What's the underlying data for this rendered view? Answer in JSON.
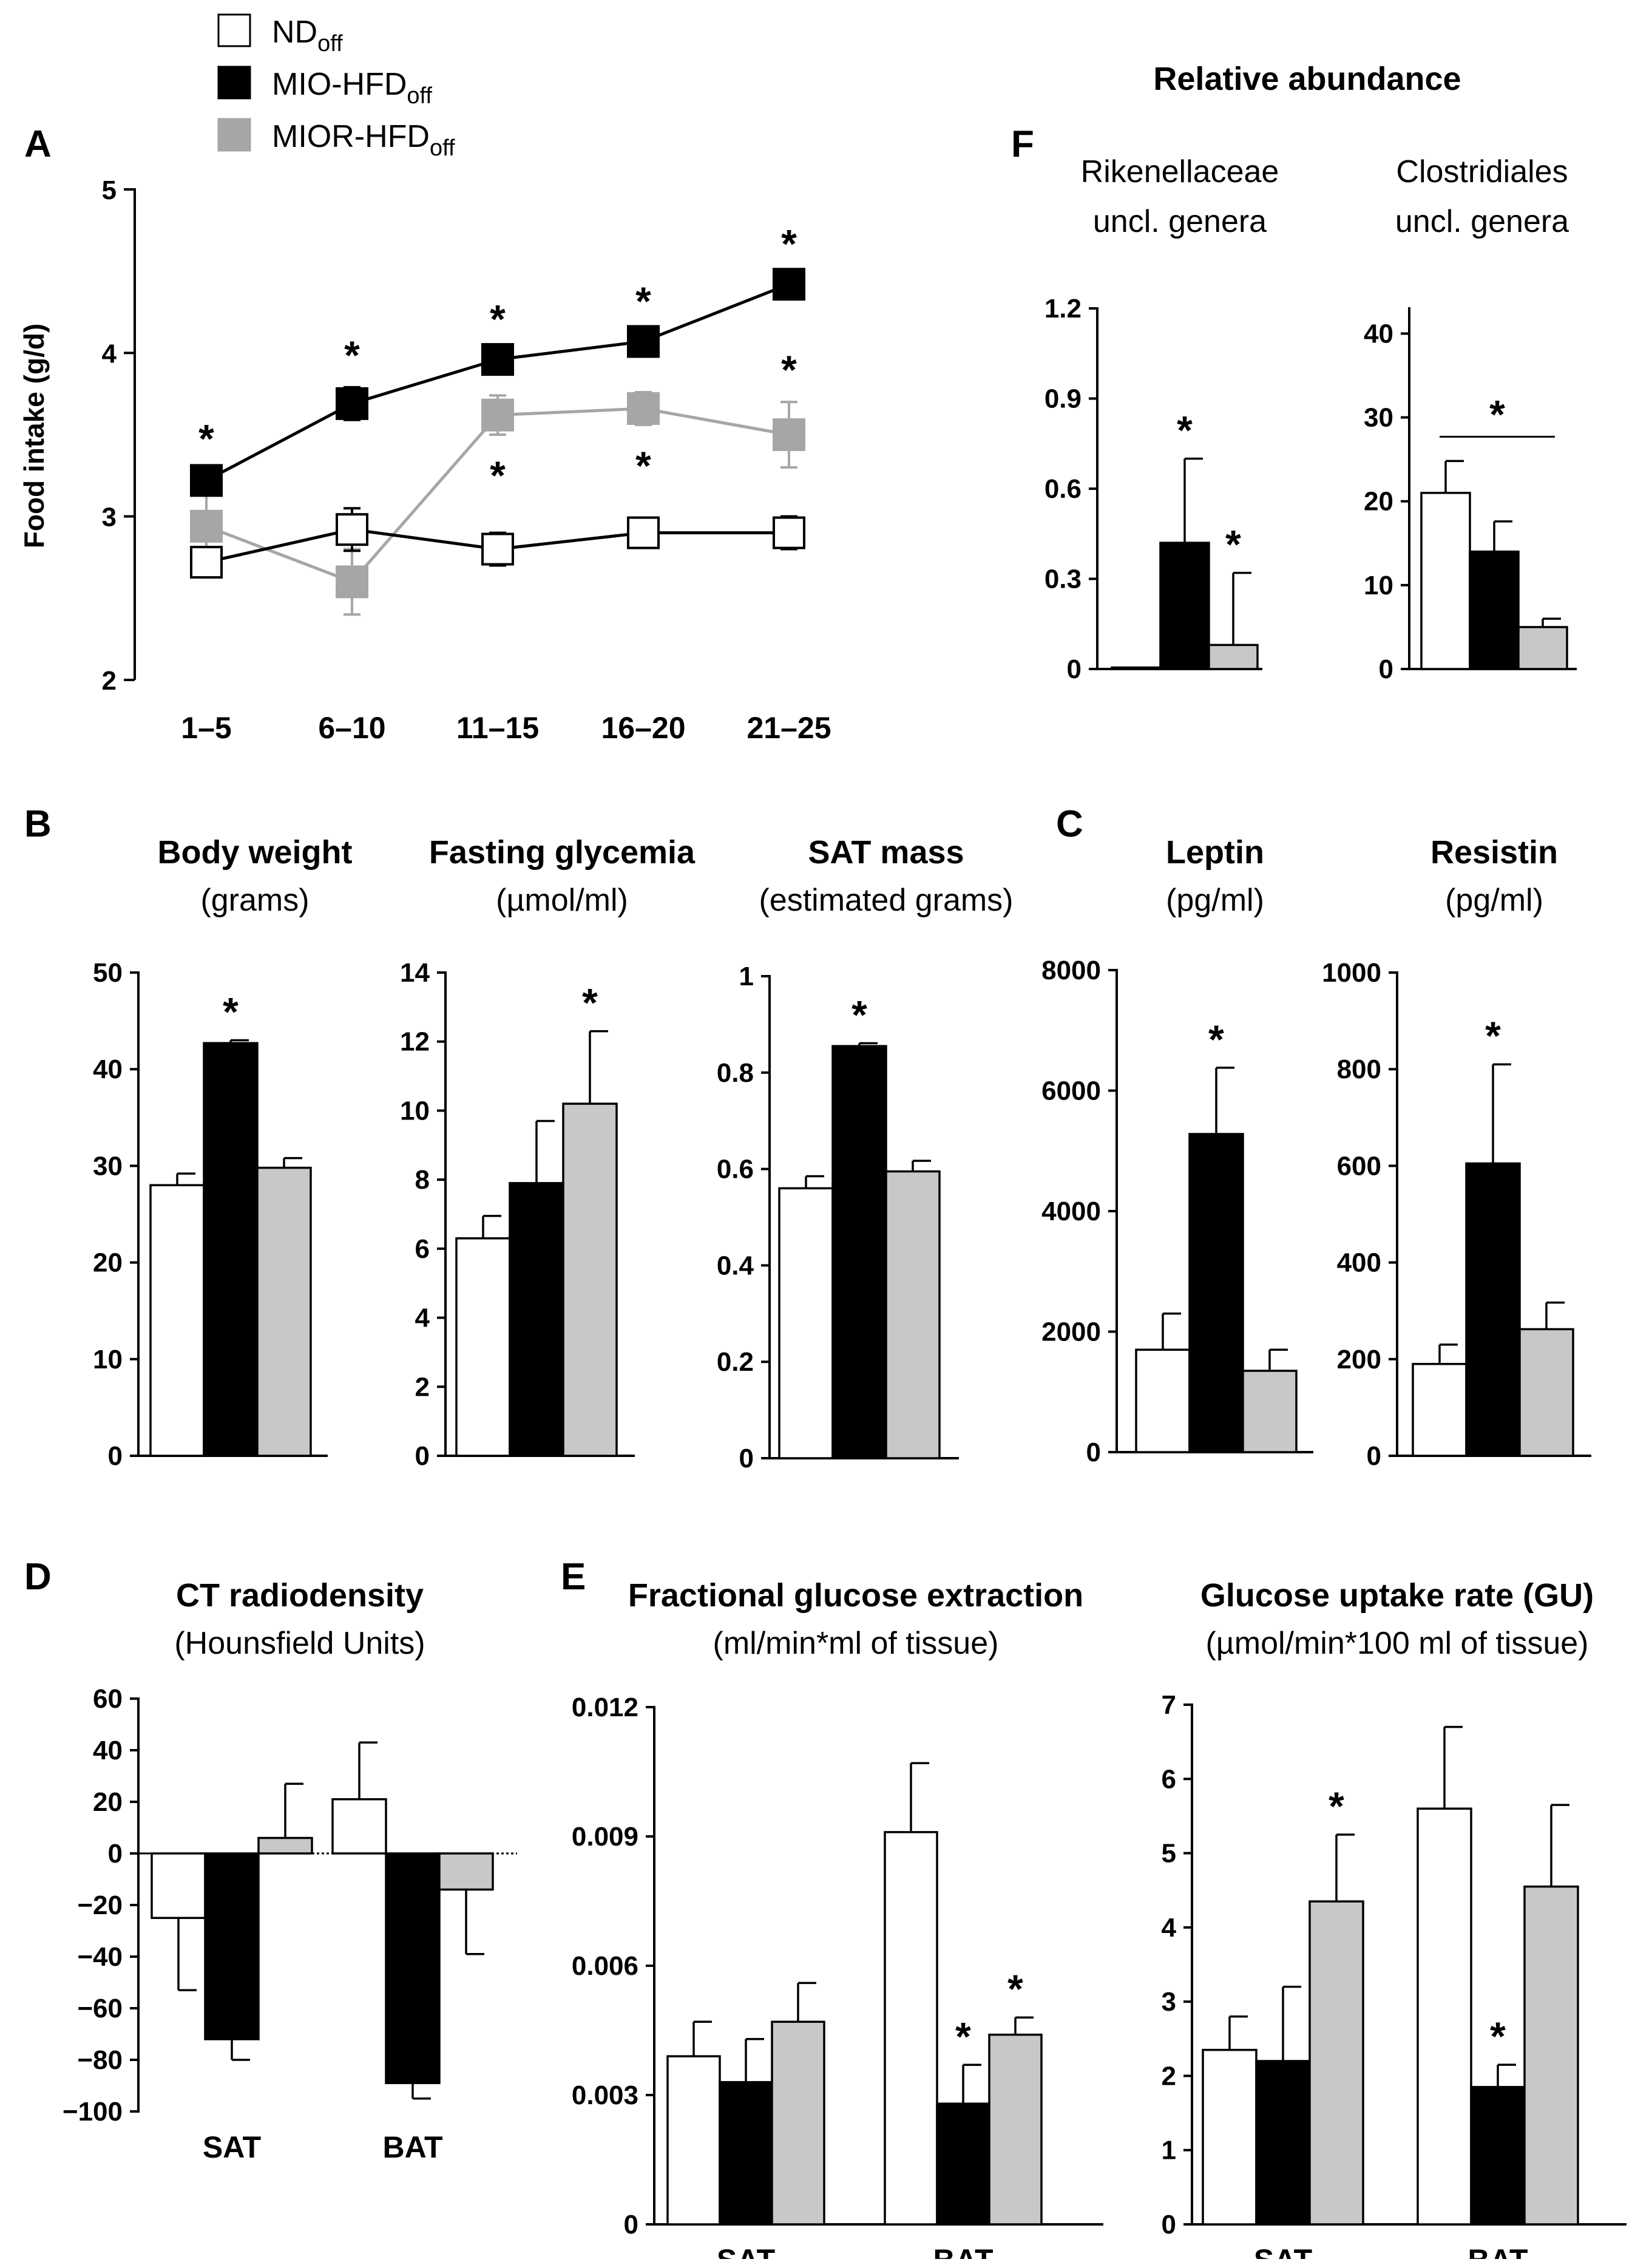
{
  "legend": [
    {
      "base": "ND",
      "sub": "off",
      "color": "#ffffff"
    },
    {
      "base": "MIO-HFD",
      "sub": "off",
      "color": "#000000"
    },
    {
      "base": "MIOR-HFD",
      "sub": "off",
      "color": "#a6a6a6"
    }
  ],
  "colors": {
    "nd": "#ffffff",
    "mio": "#000000",
    "mior_line": "#a6a6a6",
    "mior_bar": "#c8c8c8"
  },
  "chart_data": [
    {
      "id": "A",
      "type": "line",
      "panel_label": "A",
      "ylabel": "Food intake (g/d)",
      "categories": [
        "1–5",
        "6–10",
        "11–15",
        "16–20",
        "21–25"
      ],
      "ylim": [
        2,
        5
      ],
      "yticks": [
        2,
        3,
        4,
        5
      ],
      "ytick_labels": [
        "2",
        "3",
        "4",
        "5"
      ],
      "series": [
        {
          "name": "NDoff",
          "values": [
            2.72,
            2.92,
            2.8,
            2.9,
            2.9
          ],
          "errors": [
            0.06,
            0.13,
            0.1,
            0.08,
            0.1
          ],
          "asterisks": [
            false,
            false,
            false,
            false,
            false
          ]
        },
        {
          "name": "MIO-HFDoff",
          "values": [
            3.22,
            3.69,
            3.96,
            4.07,
            4.42
          ],
          "errors": [
            0.06,
            0.1,
            0.05,
            0.05,
            0.05
          ],
          "asterisks": [
            true,
            true,
            true,
            true,
            true
          ]
        },
        {
          "name": "MIOR-HFDoff",
          "values": [
            2.94,
            2.6,
            3.62,
            3.66,
            3.5
          ],
          "errors": [
            0.2,
            0.2,
            0.12,
            0.1,
            0.2
          ],
          "asterisks": [
            false,
            false,
            true,
            true,
            true
          ]
        }
      ]
    },
    {
      "id": "F1",
      "type": "bar",
      "panel_label": "F",
      "group_title": "Relative abundance",
      "title_lines": [
        "Rikenellaceae",
        "uncl. genera"
      ],
      "ylim": [
        0,
        1.2
      ],
      "yticks": [
        0,
        0.3,
        0.6,
        0.9,
        1.2
      ],
      "ytick_labels": [
        "0",
        "0.3",
        "0.6",
        "0.9",
        "1.2"
      ],
      "groups": [
        ""
      ],
      "values": [
        [
          0.005,
          0.42,
          0.08
        ]
      ],
      "errors": [
        [
          0,
          0.28,
          0.24
        ]
      ],
      "asterisks": [
        [
          false,
          true,
          true
        ]
      ]
    },
    {
      "id": "F2",
      "type": "bar",
      "title_lines": [
        "Clostridiales",
        "uncl. genera"
      ],
      "ylim": [
        0,
        43
      ],
      "yticks": [
        0,
        10,
        20,
        30,
        40
      ],
      "ytick_labels": [
        "0",
        "10",
        "20",
        "30",
        "40"
      ],
      "groups": [
        ""
      ],
      "values": [
        [
          21,
          14,
          5
        ]
      ],
      "errors": [
        [
          3.8,
          3.6,
          1
        ]
      ],
      "asterisks": [
        [
          false,
          false,
          false
        ]
      ],
      "bracket": {
        "text": "*"
      }
    },
    {
      "id": "B1",
      "type": "bar",
      "panel_label": "B",
      "title_lines": [
        "Body weight",
        "(grams)"
      ],
      "ylim": [
        0,
        50
      ],
      "yticks": [
        0,
        10,
        20,
        30,
        40,
        50
      ],
      "ytick_labels": [
        "0",
        "10",
        "20",
        "30",
        "40",
        "50"
      ],
      "groups": [
        ""
      ],
      "values": [
        [
          28,
          42.7,
          29.8
        ]
      ],
      "errors": [
        [
          1.2,
          0.3,
          1
        ]
      ],
      "asterisks": [
        [
          false,
          true,
          false
        ]
      ]
    },
    {
      "id": "B2",
      "type": "bar",
      "title_lines": [
        "Fasting glycemia",
        "(µmol/ml)"
      ],
      "ylim": [
        0,
        14
      ],
      "yticks": [
        0,
        2,
        4,
        6,
        8,
        10,
        12,
        14
      ],
      "ytick_labels": [
        "0",
        "2",
        "4",
        "6",
        "8",
        "10",
        "12",
        "14"
      ],
      "groups": [
        ""
      ],
      "values": [
        [
          6.3,
          7.9,
          10.2
        ]
      ],
      "errors": [
        [
          0.65,
          1.8,
          2.1
        ]
      ],
      "asterisks": [
        [
          false,
          false,
          true
        ]
      ]
    },
    {
      "id": "B3",
      "type": "bar",
      "title_lines": [
        "SAT mass",
        "(estimated grams)"
      ],
      "ylim": [
        0,
        1
      ],
      "yticks": [
        0,
        0.2,
        0.4,
        0.6,
        0.8,
        1
      ],
      "ytick_labels": [
        "0",
        "0.2",
        "0.4",
        "0.6",
        "0.8",
        "1"
      ],
      "groups": [
        ""
      ],
      "values": [
        [
          0.56,
          0.855,
          0.595
        ]
      ],
      "errors": [
        [
          0.025,
          0.006,
          0.022
        ]
      ],
      "asterisks": [
        [
          false,
          true,
          false
        ]
      ]
    },
    {
      "id": "C1",
      "type": "bar",
      "panel_label": "C",
      "title_lines": [
        "Leptin",
        "(pg/ml)"
      ],
      "ylim": [
        0,
        8000
      ],
      "yticks": [
        0,
        2000,
        4000,
        6000,
        8000
      ],
      "ytick_labels": [
        "0",
        "2000",
        "4000",
        "6000",
        "8000"
      ],
      "groups": [
        ""
      ],
      "values": [
        [
          1700,
          5280,
          1350
        ]
      ],
      "errors": [
        [
          600,
          1100,
          350
        ]
      ],
      "asterisks": [
        [
          false,
          true,
          false
        ]
      ]
    },
    {
      "id": "C2",
      "type": "bar",
      "title_lines": [
        "Resistin",
        "(pg/ml)"
      ],
      "ylim": [
        0,
        1000
      ],
      "yticks": [
        0,
        200,
        400,
        600,
        800,
        1000
      ],
      "ytick_labels": [
        "0",
        "200",
        "400",
        "600",
        "800",
        "1000"
      ],
      "groups": [
        ""
      ],
      "values": [
        [
          190,
          605,
          262
        ]
      ],
      "errors": [
        [
          40,
          205,
          55
        ]
      ],
      "asterisks": [
        [
          false,
          true,
          false
        ]
      ]
    },
    {
      "id": "D",
      "type": "bar",
      "panel_label": "D",
      "title_lines": [
        "CT radiodensity",
        "(Hounsfield Units)"
      ],
      "ylim": [
        -100,
        60
      ],
      "yticks": [
        -100,
        -80,
        -60,
        -40,
        -20,
        0,
        20,
        40,
        60
      ],
      "ytick_labels": [
        "−100",
        "−80",
        "−60",
        "−40",
        "−20",
        "0",
        "20",
        "40",
        "60"
      ],
      "groups": [
        "SAT",
        "BAT"
      ],
      "values": [
        [
          -25,
          -72,
          6
        ],
        [
          21,
          -89,
          -14
        ]
      ],
      "errors": [
        [
          -28,
          -8,
          21
        ],
        [
          22,
          -6,
          -25
        ]
      ],
      "asterisks": [
        [
          false,
          false,
          false
        ],
        [
          false,
          true,
          false
        ]
      ]
    },
    {
      "id": "E1",
      "type": "bar",
      "panel_label": "E",
      "title_lines": [
        "Fractional glucose extraction",
        "(ml/min*ml of tissue)"
      ],
      "ylim": [
        0,
        0.012
      ],
      "yticks": [
        0,
        0.003,
        0.006,
        0.009,
        0.012
      ],
      "ytick_labels": [
        "0",
        "0.003",
        "0.006",
        "0.009",
        "0.012"
      ],
      "groups": [
        "SAT",
        "BAT"
      ],
      "values": [
        [
          0.0039,
          0.0033,
          0.0047
        ],
        [
          0.0091,
          0.0028,
          0.0044
        ]
      ],
      "errors": [
        [
          0.0008,
          0.001,
          0.0009
        ],
        [
          0.0016,
          0.0009,
          0.0004
        ]
      ],
      "asterisks": [
        [
          false,
          false,
          false
        ],
        [
          false,
          true,
          true
        ]
      ]
    },
    {
      "id": "E2",
      "type": "bar",
      "title_lines": [
        "Glucose uptake rate (GU)",
        "(µmol/min*100 ml of tissue)"
      ],
      "ylim": [
        0,
        7
      ],
      "yticks": [
        0,
        1,
        2,
        3,
        4,
        5,
        6,
        7
      ],
      "ytick_labels": [
        "0",
        "1",
        "2",
        "3",
        "4",
        "5",
        "6",
        "7"
      ],
      "groups": [
        "SAT",
        "BAT"
      ],
      "values": [
        [
          2.35,
          2.2,
          4.35
        ],
        [
          5.6,
          1.85,
          4.55
        ]
      ],
      "errors": [
        [
          0.45,
          1.0,
          0.9
        ],
        [
          1.1,
          0.3,
          1.1
        ]
      ],
      "asterisks": [
        [
          false,
          false,
          true
        ],
        [
          false,
          true,
          false
        ]
      ]
    }
  ]
}
